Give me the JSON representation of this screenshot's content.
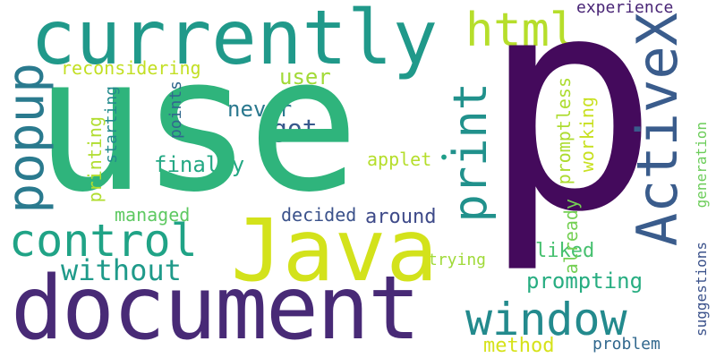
{
  "wordcloud": {
    "words": {
      "p": {
        "text": "p",
        "color": "#440a5c"
      },
      "use": {
        "text": "use",
        "color": "#2fb47c"
      },
      "currently": {
        "text": "currently",
        "color": "#20998a"
      },
      "document": {
        "text": "document",
        "color": "#482a76"
      },
      "java": {
        "text": "Java",
        "color": "#d3e21b"
      },
      "activex": {
        "text": "ActiveX",
        "color": "#3a5c8c"
      },
      "html": {
        "text": "html",
        "color": "#b6de2b"
      },
      "popup": {
        "text": "popup",
        "color": "#2a7a8e"
      },
      "control": {
        "text": "control",
        "color": "#20a386"
      },
      "print": {
        "text": "print",
        "color": "#21918c"
      },
      "window": {
        "text": "window",
        "color": "#238a8d"
      },
      "without": {
        "text": "without",
        "color": "#1f9a8a"
      },
      "finally": {
        "text": "finally",
        "color": "#24a884"
      },
      "got": {
        "text": "got",
        "color": "#38598c"
      },
      "never": {
        "text": "never",
        "color": "#2a788e"
      },
      "user": {
        "text": "user",
        "color": "#a2da37"
      },
      "reconsidering": {
        "text": "reconsidering",
        "color": "#c2df23"
      },
      "printing": {
        "text": "printing",
        "color": "#b0dd2f"
      },
      "starting": {
        "text": "starting",
        "color": "#238a8d"
      },
      "points": {
        "text": "points",
        "color": "#31688e"
      },
      "managed": {
        "text": "managed",
        "color": "#5ec962"
      },
      "decided": {
        "text": "decided",
        "color": "#3b528b"
      },
      "around": {
        "text": "around",
        "color": "#3e4a89"
      },
      "applet": {
        "text": "applet",
        "color": "#b5de2b"
      },
      "dot": {
        "text": "•",
        "color": "#1f9e89"
      },
      "trying": {
        "text": "trying",
        "color": "#a0da39"
      },
      "method": {
        "text": "method",
        "color": "#d6e21a"
      },
      "problem": {
        "text": "problem",
        "color": "#31688e"
      },
      "experience": {
        "text": "experience",
        "color": "#482475"
      },
      "promptless": {
        "text": "promptless",
        "color": "#addc30"
      },
      "working": {
        "text": "working",
        "color": "#c8e020"
      },
      "generation": {
        "text": "generation",
        "color": "#6ccd5a"
      },
      "suggestions": {
        "text": "suggestions",
        "color": "#3b528b"
      },
      "already": {
        "text": "already",
        "color": "#75d054"
      },
      "liked": {
        "text": "liked",
        "color": "#46c06f"
      },
      "prompting": {
        "text": "prompting",
        "color": "#27ad81"
      }
    }
  }
}
